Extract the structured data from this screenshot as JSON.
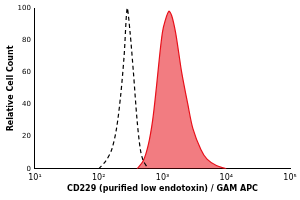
{
  "chart_data": {
    "type": "line",
    "x_label": "CD229 (purified low endotoxin) / GAM APC",
    "y_label": "Relative Cell Count",
    "log": "x",
    "grid": false,
    "xlim": [
      10,
      100000
    ],
    "xticks": [
      {
        "value": 10,
        "label": "10¹"
      },
      {
        "value": 100,
        "label": "10²"
      },
      {
        "value": 1000,
        "label": "10³"
      },
      {
        "value": 10000,
        "label": "10⁴"
      },
      {
        "value": 100000,
        "label": "10⁵"
      }
    ],
    "ylim": [
      0,
      100
    ],
    "yticks": [
      0,
      20,
      40,
      60,
      80,
      100
    ],
    "series": [
      {
        "color": "#000000",
        "line_style": "dashed",
        "x": [
          100,
          130,
          160,
          190,
          220,
          250,
          280,
          310,
          350,
          400,
          450,
          500,
          600
        ],
        "values": [
          0,
          5,
          12,
          25,
          45,
          70,
          100,
          85,
          60,
          30,
          12,
          5,
          0
        ]
      },
      {
        "color": "#e8101a",
        "line_style": "solid",
        "type": "area",
        "x": [
          400,
          500,
          600,
          700,
          800,
          900,
          1000,
          1100,
          1260,
          1400,
          1600,
          1800,
          2000,
          2500,
          3000,
          4000,
          5000,
          7000,
          10000
        ],
        "values": [
          0,
          5,
          15,
          30,
          50,
          70,
          85,
          92,
          98,
          95,
          85,
          72,
          60,
          40,
          25,
          12,
          6,
          2,
          0
        ]
      }
    ]
  }
}
